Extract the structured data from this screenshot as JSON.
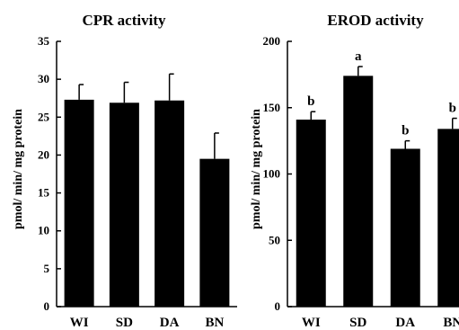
{
  "chart_data": [
    {
      "type": "bar",
      "title": "CPR activity",
      "ylabel": "pmol/ min/ mg protein",
      "categories": [
        "WI",
        "SD",
        "DA",
        "BN"
      ],
      "values": [
        27.3,
        26.9,
        27.2,
        19.5
      ],
      "errors": [
        2.0,
        2.7,
        3.5,
        3.4
      ],
      "annotations": [],
      "ylim": [
        0,
        35
      ],
      "yticks": [
        0,
        5,
        10,
        15,
        20,
        25,
        30,
        35
      ],
      "ytick_labels": [
        "0",
        "5",
        "10",
        "15",
        "20",
        "25",
        "30",
        "35"
      ],
      "bar_color": "#000000"
    },
    {
      "type": "bar",
      "title": "EROD activity",
      "ylabel": "pmol/ min/ mg protein",
      "categories": [
        "WI",
        "SD",
        "DA",
        "BN"
      ],
      "values": [
        141,
        174,
        119,
        134
      ],
      "errors": [
        6,
        7,
        6,
        8
      ],
      "annotations": [
        "b",
        "a",
        "b",
        "b"
      ],
      "ylim": [
        0,
        200
      ],
      "yticks": [
        0,
        50,
        100,
        150,
        200
      ],
      "ytick_labels": [
        "0",
        "50",
        "100",
        "150",
        "200"
      ],
      "bar_color": "#000000"
    }
  ]
}
